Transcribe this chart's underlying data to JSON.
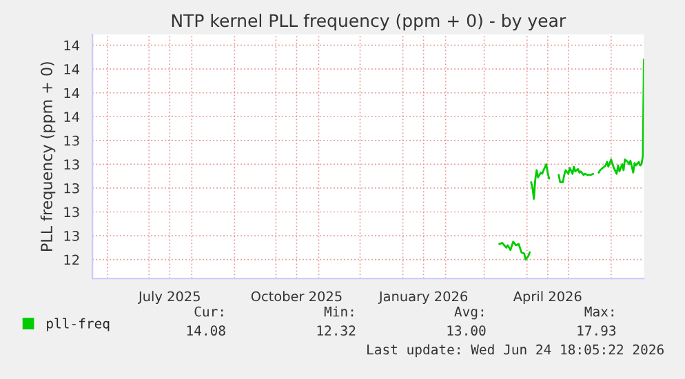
{
  "chart_data": {
    "type": "line",
    "title": "NTP kernel PLL frequency (ppm + 0) - by year",
    "ylabel": "PLL frequency (ppm + 0)",
    "x": [
      "2026-03-12",
      "2026-03-14",
      "2026-03-17",
      "2026-03-18",
      "2026-03-20",
      "2026-03-22",
      "2026-03-24",
      "2026-03-26",
      "2026-03-28",
      "2026-03-30",
      "2026-03-31",
      "2026-04-02",
      "2026-04-03",
      "2026-04-03T12:00",
      "2026-04-04",
      "2026-04-05",
      "2026-04-06",
      "2026-04-07",
      "2026-04-08",
      "2026-04-09",
      "2026-04-11",
      "2026-04-12",
      "2026-04-13",
      "2026-04-15",
      "2026-04-16",
      "2026-04-17",
      "2026-04-20",
      "2026-04-24",
      "2026-04-25",
      "2026-04-27",
      "2026-04-28",
      "2026-04-29",
      "2026-05-01",
      "2026-05-02",
      "2026-05-04",
      "2026-05-05",
      "2026-05-06",
      "2026-05-08",
      "2026-05-09",
      "2026-05-10",
      "2026-05-12",
      "2026-05-13",
      "2026-05-15",
      "2026-05-17",
      "2026-05-19",
      "2026-05-21",
      "2026-05-23",
      "2026-05-24",
      "2026-05-26",
      "2026-05-28",
      "2026-05-29",
      "2026-05-30",
      "2026-06-01",
      "2026-06-02",
      "2026-06-03",
      "2026-06-05",
      "2026-06-06",
      "2026-06-07",
      "2026-06-09",
      "2026-06-10",
      "2026-06-11",
      "2026-06-13",
      "2026-06-14",
      "2026-06-15",
      "2026-06-17",
      "2026-06-18",
      "2026-06-19",
      "2026-06-21",
      "2026-06-22",
      "2026-06-23",
      "2026-06-24T00:00",
      "2026-06-24T18:00"
    ],
    "series": [
      {
        "name": "pll-freq",
        "color": "#00cc00",
        "values": [
          12.53,
          12.54,
          12.5,
          12.52,
          12.48,
          12.55,
          12.52,
          12.53,
          12.46,
          12.45,
          12.4,
          12.43,
          12.46,
          null,
          13.05,
          13.0,
          12.91,
          13.07,
          13.15,
          13.09,
          13.13,
          13.12,
          13.15,
          13.2,
          13.13,
          13.08,
          null,
          13.11,
          13.05,
          13.05,
          13.11,
          13.15,
          13.12,
          13.17,
          13.12,
          13.18,
          13.14,
          13.16,
          13.13,
          13.14,
          13.11,
          13.12,
          13.11,
          13.11,
          13.12,
          null,
          13.13,
          13.15,
          13.17,
          13.19,
          13.22,
          13.18,
          13.24,
          13.2,
          13.17,
          13.12,
          13.19,
          13.14,
          13.2,
          13.15,
          13.24,
          13.22,
          13.2,
          13.23,
          13.13,
          13.21,
          13.19,
          13.22,
          13.19,
          13.2,
          13.27,
          14.08
        ]
      }
    ],
    "xlim": [
      "2025-05-21",
      "2026-06-24T18:00"
    ],
    "xticks": [
      {
        "value": "2025-06-01",
        "label": null
      },
      {
        "value": "2025-07-01",
        "label": null
      },
      {
        "value": "2025-07-16",
        "label": "July 2025"
      },
      {
        "value": "2025-08-01",
        "label": null
      },
      {
        "value": "2025-09-01",
        "label": null
      },
      {
        "value": "2025-10-01",
        "label": null
      },
      {
        "value": "2025-10-16",
        "label": "October 2025"
      },
      {
        "value": "2025-11-01",
        "label": null
      },
      {
        "value": "2025-12-01",
        "label": null
      },
      {
        "value": "2026-01-01",
        "label": null
      },
      {
        "value": "2026-01-16",
        "label": "January 2026"
      },
      {
        "value": "2026-02-01",
        "label": null
      },
      {
        "value": "2026-03-01",
        "label": null
      },
      {
        "value": "2026-04-01",
        "label": null
      },
      {
        "value": "2026-04-16",
        "label": "April 2026"
      },
      {
        "value": "2026-05-01",
        "label": null
      },
      {
        "value": "2026-06-01",
        "label": null
      }
    ],
    "ylim": [
      12.24,
      14.29
    ],
    "yticks": [
      {
        "value": 12.4,
        "label": "12"
      },
      {
        "value": 12.6,
        "label": "13"
      },
      {
        "value": 12.8,
        "label": "13"
      },
      {
        "value": 13.0,
        "label": "13"
      },
      {
        "value": 13.2,
        "label": "13"
      },
      {
        "value": 13.4,
        "label": "13"
      },
      {
        "value": 13.6,
        "label": "14"
      },
      {
        "value": 13.8,
        "label": "14"
      },
      {
        "value": 14.0,
        "label": "14"
      },
      {
        "value": 14.2,
        "label": "14"
      }
    ],
    "grid": true,
    "legend": "bottom left",
    "annotations": [
      "Cur:",
      "Min:",
      "Avg:",
      "Max:",
      "14.08",
      "12.32",
      "13.00",
      "17.93",
      "Last update: Wed Jun 24 18:05:22 2026"
    ]
  }
}
